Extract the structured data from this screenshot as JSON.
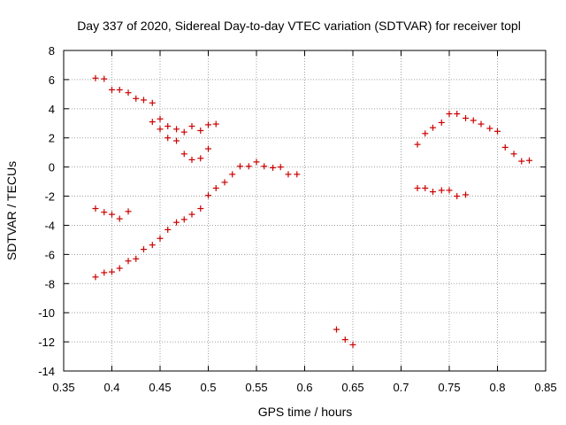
{
  "chart_data": {
    "type": "scatter",
    "title": "Day 337 of 2020, Sidereal Day-to-day VTEC variation (SDTVAR) for receiver topl",
    "xlabel": "GPS time / hours",
    "ylabel": "SDTVAR / TECUs",
    "xlim": [
      0.35,
      0.85
    ],
    "ylim": [
      -14,
      8
    ],
    "xticks": [
      0.35,
      0.4,
      0.45,
      0.5,
      0.55,
      0.6,
      0.65,
      0.7,
      0.75,
      0.8,
      0.85
    ],
    "xtick_labels": [
      "0.35",
      "0.4",
      "0.45",
      "0.5",
      "0.55",
      "0.6",
      "0.65",
      "0.7",
      "0.75",
      "0.8",
      "0.85"
    ],
    "yticks": [
      -14,
      -12,
      -10,
      -8,
      -6,
      -4,
      -2,
      0,
      2,
      4,
      6,
      8
    ],
    "ytick_labels": [
      "-14",
      "-12",
      "-10",
      "-8",
      "-6",
      "-4",
      "-2",
      "0",
      "2",
      "4",
      "6",
      "8"
    ],
    "grid": true,
    "marker": "+",
    "marker_color": "#cc0000",
    "series": [
      {
        "name": "SDTVAR",
        "points": [
          [
            0.383,
            6.1
          ],
          [
            0.392,
            6.05
          ],
          [
            0.4,
            5.3
          ],
          [
            0.408,
            5.3
          ],
          [
            0.417,
            5.1
          ],
          [
            0.425,
            4.7
          ],
          [
            0.433,
            4.6
          ],
          [
            0.442,
            4.4
          ],
          [
            0.442,
            3.1
          ],
          [
            0.45,
            3.3
          ],
          [
            0.45,
            2.6
          ],
          [
            0.458,
            2.8
          ],
          [
            0.467,
            2.6
          ],
          [
            0.475,
            2.4
          ],
          [
            0.483,
            2.8
          ],
          [
            0.492,
            2.5
          ],
          [
            0.5,
            2.9
          ],
          [
            0.508,
            2.95
          ],
          [
            0.458,
            2.0
          ],
          [
            0.467,
            1.8
          ],
          [
            0.475,
            0.9
          ],
          [
            0.483,
            0.5
          ],
          [
            0.492,
            0.6
          ],
          [
            0.5,
            1.25
          ],
          [
            0.383,
            -2.85
          ],
          [
            0.392,
            -3.1
          ],
          [
            0.4,
            -3.25
          ],
          [
            0.408,
            -3.55
          ],
          [
            0.417,
            -3.05
          ],
          [
            0.383,
            -7.55
          ],
          [
            0.392,
            -7.25
          ],
          [
            0.4,
            -7.2
          ],
          [
            0.408,
            -6.95
          ],
          [
            0.417,
            -6.45
          ],
          [
            0.425,
            -6.3
          ],
          [
            0.433,
            -5.65
          ],
          [
            0.442,
            -5.35
          ],
          [
            0.45,
            -4.9
          ],
          [
            0.458,
            -4.3
          ],
          [
            0.467,
            -3.8
          ],
          [
            0.475,
            -3.6
          ],
          [
            0.483,
            -3.25
          ],
          [
            0.492,
            -2.85
          ],
          [
            0.5,
            -1.95
          ],
          [
            0.508,
            -1.45
          ],
          [
            0.517,
            -1.05
          ],
          [
            0.525,
            -0.5
          ],
          [
            0.533,
            0.05
          ],
          [
            0.542,
            0.05
          ],
          [
            0.55,
            0.35
          ],
          [
            0.558,
            0.05
          ],
          [
            0.567,
            -0.05
          ],
          [
            0.575,
            0.0
          ],
          [
            0.583,
            -0.5
          ],
          [
            0.592,
            -0.5
          ],
          [
            0.633,
            -11.15
          ],
          [
            0.642,
            -11.85
          ],
          [
            0.65,
            -12.2
          ],
          [
            0.717,
            1.55
          ],
          [
            0.725,
            2.3
          ],
          [
            0.733,
            2.7
          ],
          [
            0.742,
            3.05
          ],
          [
            0.75,
            3.65
          ],
          [
            0.758,
            3.65
          ],
          [
            0.767,
            3.35
          ],
          [
            0.775,
            3.2
          ],
          [
            0.783,
            2.95
          ],
          [
            0.792,
            2.65
          ],
          [
            0.8,
            2.45
          ],
          [
            0.808,
            1.35
          ],
          [
            0.817,
            0.9
          ],
          [
            0.825,
            0.4
          ],
          [
            0.833,
            0.45
          ],
          [
            0.717,
            -1.45
          ],
          [
            0.725,
            -1.45
          ],
          [
            0.733,
            -1.7
          ],
          [
            0.742,
            -1.6
          ],
          [
            0.75,
            -1.6
          ],
          [
            0.758,
            -2.0
          ],
          [
            0.767,
            -1.9
          ]
        ]
      }
    ]
  }
}
